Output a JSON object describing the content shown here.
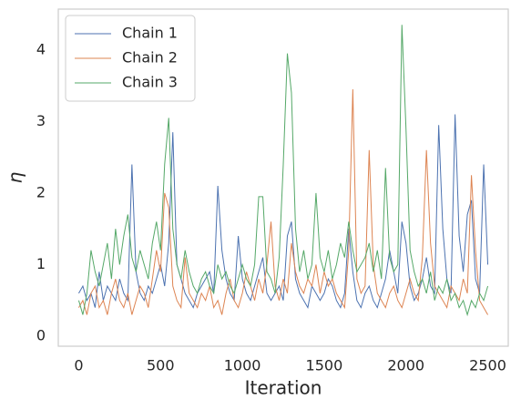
{
  "chart_data": {
    "type": "line",
    "x_label": "Iteration",
    "y_label": "η",
    "x": [
      0,
      25,
      50,
      75,
      100,
      125,
      150,
      175,
      200,
      225,
      250,
      275,
      300,
      325,
      350,
      375,
      400,
      425,
      450,
      475,
      500,
      525,
      550,
      575,
      600,
      625,
      650,
      675,
      700,
      725,
      750,
      775,
      800,
      825,
      850,
      875,
      900,
      925,
      950,
      975,
      1000,
      1025,
      1050,
      1075,
      1100,
      1125,
      1150,
      1175,
      1200,
      1225,
      1250,
      1275,
      1300,
      1325,
      1350,
      1375,
      1400,
      1425,
      1450,
      1475,
      1500,
      1525,
      1550,
      1575,
      1600,
      1625,
      1650,
      1675,
      1700,
      1725,
      1750,
      1775,
      1800,
      1825,
      1850,
      1875,
      1900,
      1925,
      1950,
      1975,
      2000,
      2025,
      2050,
      2075,
      2100,
      2125,
      2150,
      2175,
      2200,
      2225,
      2250,
      2275,
      2300,
      2325,
      2350,
      2375,
      2400,
      2425,
      2450,
      2475,
      2500
    ],
    "series": [
      {
        "name": "Chain 1",
        "color": "#4c72b0",
        "values": [
          0.6,
          0.7,
          0.5,
          0.6,
          0.4,
          0.9,
          0.5,
          0.7,
          0.6,
          0.5,
          0.8,
          0.6,
          0.5,
          2.4,
          0.9,
          0.6,
          0.5,
          0.7,
          0.6,
          0.8,
          1.0,
          0.7,
          1.3,
          2.85,
          1.0,
          0.8,
          0.6,
          0.5,
          0.4,
          0.6,
          0.7,
          0.8,
          0.9,
          0.6,
          2.1,
          1.2,
          0.8,
          0.6,
          0.5,
          1.4,
          0.8,
          0.6,
          0.5,
          0.7,
          0.9,
          1.1,
          0.6,
          0.5,
          0.6,
          0.7,
          0.5,
          1.4,
          1.6,
          0.8,
          0.6,
          0.5,
          0.4,
          0.7,
          0.6,
          0.5,
          0.6,
          0.8,
          0.7,
          0.5,
          0.4,
          0.6,
          1.5,
          0.9,
          0.5,
          0.4,
          0.6,
          0.7,
          0.5,
          0.4,
          0.6,
          0.8,
          1.2,
          0.9,
          0.6,
          1.6,
          1.3,
          0.7,
          0.5,
          0.6,
          0.8,
          1.1,
          0.7,
          0.6,
          2.95,
          1.5,
          0.8,
          0.6,
          3.1,
          1.4,
          0.9,
          1.7,
          1.9,
          0.8,
          0.6,
          2.4,
          1.0
        ]
      },
      {
        "name": "Chain 2",
        "color": "#dd8452",
        "values": [
          0.4,
          0.5,
          0.3,
          0.6,
          0.7,
          0.4,
          0.5,
          0.3,
          0.6,
          0.8,
          0.5,
          0.4,
          0.6,
          0.3,
          0.5,
          0.7,
          0.6,
          0.4,
          0.8,
          1.2,
          0.9,
          2.0,
          1.8,
          0.7,
          0.5,
          0.4,
          1.1,
          0.6,
          0.5,
          0.4,
          0.6,
          0.5,
          0.7,
          0.4,
          0.5,
          0.3,
          0.6,
          0.8,
          0.5,
          0.4,
          0.6,
          0.9,
          0.7,
          0.5,
          0.8,
          0.6,
          1.0,
          1.6,
          0.7,
          0.5,
          0.8,
          0.6,
          1.3,
          0.9,
          0.7,
          0.6,
          0.8,
          0.7,
          1.0,
          0.6,
          0.9,
          0.7,
          0.8,
          0.6,
          0.5,
          0.4,
          1.2,
          3.45,
          0.8,
          0.6,
          0.7,
          2.6,
          1.0,
          0.6,
          0.5,
          0.4,
          0.6,
          0.7,
          0.5,
          0.4,
          0.6,
          0.8,
          0.6,
          0.5,
          1.1,
          2.6,
          1.3,
          0.7,
          0.6,
          0.5,
          0.4,
          0.7,
          0.6,
          0.5,
          0.8,
          0.6,
          2.25,
          1.2,
          0.5,
          0.4,
          0.3
        ]
      },
      {
        "name": "Chain 3",
        "color": "#55a868",
        "values": [
          0.5,
          0.3,
          0.6,
          1.2,
          0.9,
          0.7,
          1.0,
          1.3,
          0.8,
          1.5,
          1.0,
          1.4,
          1.7,
          1.1,
          0.9,
          1.2,
          1.0,
          0.8,
          1.3,
          1.6,
          1.2,
          2.4,
          3.05,
          1.5,
          1.0,
          0.8,
          1.2,
          0.9,
          0.7,
          0.6,
          0.8,
          0.9,
          0.7,
          0.6,
          1.0,
          0.8,
          0.9,
          0.7,
          0.6,
          0.8,
          1.0,
          0.8,
          0.7,
          1.0,
          1.95,
          1.95,
          0.9,
          0.8,
          0.6,
          1.1,
          2.4,
          3.95,
          3.4,
          1.5,
          0.9,
          1.2,
          0.8,
          1.0,
          2.0,
          1.1,
          0.9,
          1.2,
          0.8,
          1.0,
          1.3,
          1.1,
          1.6,
          1.2,
          0.9,
          1.0,
          1.1,
          1.3,
          0.9,
          1.2,
          0.8,
          2.35,
          1.1,
          0.9,
          1.0,
          4.35,
          2.9,
          1.2,
          0.9,
          0.7,
          0.8,
          0.6,
          0.9,
          0.5,
          0.7,
          0.6,
          0.8,
          0.5,
          0.6,
          0.4,
          0.5,
          0.3,
          0.5,
          0.4,
          0.6,
          0.5,
          0.7
        ]
      }
    ],
    "xlim": [
      -125,
      2625
    ],
    "xticks": [
      0,
      500,
      1000,
      1500,
      2000,
      2500
    ],
    "ylim": [
      -0.14,
      4.57
    ],
    "yticks": [
      0,
      1,
      2,
      3,
      4
    ],
    "grid": false,
    "legend": "upper left"
  }
}
